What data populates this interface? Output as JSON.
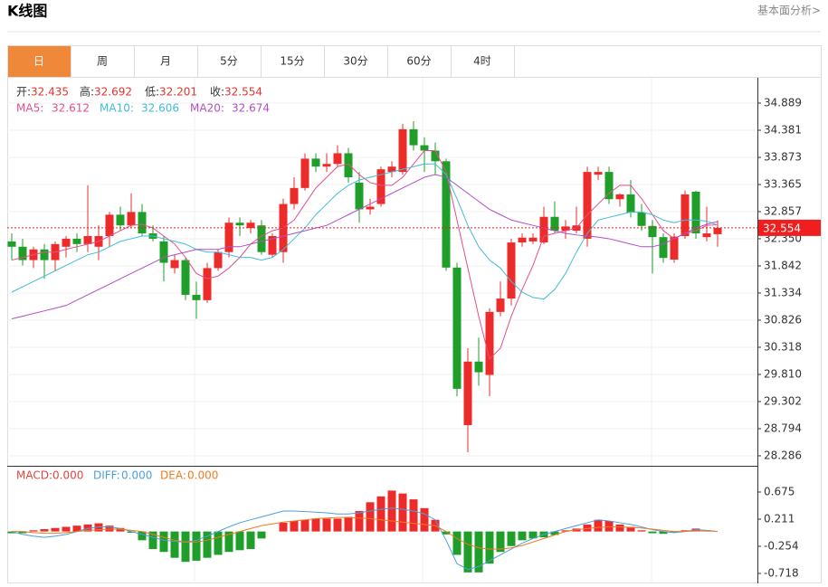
{
  "header": {
    "title": "K线图",
    "link": "基本面分析>"
  },
  "tabs": [
    "日",
    "周",
    "月",
    "5分",
    "15分",
    "30分",
    "60分",
    "4时"
  ],
  "active_tab": 0,
  "chart_data": [
    {
      "type": "candlestick",
      "ohlc_labels": [
        "开:",
        "高:",
        "低:",
        "收:"
      ],
      "ohlc": [
        [
          32.3,
          32.45,
          31.95,
          32.2
        ],
        [
          32.2,
          32.35,
          31.85,
          31.95
        ],
        [
          31.95,
          32.2,
          31.8,
          32.15
        ],
        [
          32.15,
          32.25,
          31.6,
          31.95
        ],
        [
          31.95,
          32.3,
          31.75,
          32.25
        ],
        [
          32.2,
          32.4,
          32.0,
          32.35
        ],
        [
          32.35,
          32.45,
          32.1,
          32.25
        ],
        [
          32.25,
          33.35,
          32.1,
          32.4
        ],
        [
          32.2,
          32.6,
          31.95,
          32.4
        ],
        [
          32.4,
          32.85,
          32.2,
          32.8
        ],
        [
          32.8,
          32.95,
          32.5,
          32.6
        ],
        [
          32.6,
          33.2,
          32.55,
          32.85
        ],
        [
          32.85,
          33.0,
          32.4,
          32.45
        ],
        [
          32.45,
          32.6,
          32.3,
          32.35
        ],
        [
          32.3,
          32.4,
          31.55,
          31.9
        ],
        [
          31.8,
          32.05,
          31.7,
          31.95
        ],
        [
          31.95,
          32.0,
          31.2,
          31.3
        ],
        [
          31.3,
          31.55,
          30.85,
          31.2
        ],
        [
          31.2,
          31.9,
          31.15,
          31.8
        ],
        [
          31.8,
          32.15,
          31.75,
          32.1
        ],
        [
          32.1,
          32.75,
          32.0,
          32.65
        ],
        [
          32.65,
          32.75,
          32.4,
          32.6
        ],
        [
          32.55,
          32.7,
          32.45,
          32.65
        ],
        [
          32.6,
          32.7,
          32.05,
          32.1
        ],
        [
          32.05,
          32.45,
          32.0,
          32.4
        ],
        [
          32.1,
          33.1,
          31.9,
          33.0
        ],
        [
          33.0,
          33.5,
          32.9,
          33.3
        ],
        [
          33.3,
          33.95,
          33.25,
          33.85
        ],
        [
          33.85,
          33.95,
          33.6,
          33.7
        ],
        [
          33.7,
          33.95,
          33.6,
          33.75
        ],
        [
          33.75,
          34.1,
          33.7,
          33.95
        ],
        [
          33.95,
          34.05,
          33.4,
          33.5
        ],
        [
          33.4,
          33.6,
          32.65,
          32.9
        ],
        [
          32.9,
          33.1,
          32.8,
          32.95
        ],
        [
          33.0,
          33.7,
          32.95,
          33.65
        ],
        [
          33.6,
          33.8,
          33.5,
          33.7
        ],
        [
          33.6,
          34.5,
          33.55,
          34.4
        ],
        [
          34.4,
          34.55,
          34.0,
          34.1
        ],
        [
          34.1,
          34.25,
          33.6,
          34.0
        ],
        [
          34.0,
          34.15,
          33.55,
          33.8
        ],
        [
          33.8,
          33.85,
          31.75,
          31.81
        ],
        [
          31.81,
          31.9,
          29.4,
          29.54
        ],
        [
          28.86,
          30.3,
          28.35,
          30.05
        ],
        [
          30.05,
          30.5,
          29.6,
          29.85
        ],
        [
          29.8,
          31.05,
          29.4,
          30.98
        ],
        [
          30.98,
          31.55,
          30.9,
          31.23
        ],
        [
          31.23,
          32.35,
          31.1,
          32.28
        ],
        [
          32.28,
          32.45,
          32.2,
          32.37
        ],
        [
          32.3,
          32.45,
          32.25,
          32.37
        ],
        [
          32.28,
          32.95,
          32.25,
          32.76
        ],
        [
          32.76,
          33.05,
          32.45,
          32.5
        ],
        [
          32.5,
          32.7,
          32.35,
          32.58
        ],
        [
          32.5,
          32.95,
          32.45,
          32.6
        ],
        [
          32.35,
          33.7,
          32.2,
          33.6
        ],
        [
          33.55,
          33.7,
          33.45,
          33.6
        ],
        [
          33.6,
          33.7,
          33.0,
          33.09
        ],
        [
          33.09,
          33.2,
          32.95,
          33.18
        ],
        [
          33.18,
          33.45,
          32.75,
          32.84
        ],
        [
          32.84,
          33.0,
          32.5,
          32.59
        ],
        [
          32.59,
          32.7,
          31.7,
          32.38
        ],
        [
          32.38,
          32.45,
          31.9,
          31.99
        ],
        [
          31.96,
          32.45,
          31.9,
          32.39
        ],
        [
          32.4,
          33.25,
          32.35,
          33.18
        ],
        [
          33.23,
          33.25,
          32.35,
          32.45
        ],
        [
          32.38,
          32.95,
          32.3,
          32.45
        ],
        [
          32.435,
          32.692,
          32.201,
          32.554
        ]
      ],
      "up_color": "#ee2b2b",
      "down_color": "#1f9e2a",
      "series": [
        {
          "name": "MA5:",
          "color": "#e2508c",
          "values": [
            31.95,
            32.0,
            32.05,
            32.1,
            32.1,
            32.15,
            32.2,
            32.25,
            32.3,
            32.4,
            32.5,
            32.6,
            32.62,
            32.55,
            32.4,
            32.25,
            32.0,
            31.7,
            31.6,
            31.65,
            31.8,
            32.0,
            32.25,
            32.4,
            32.5,
            32.55,
            32.7,
            33.0,
            33.3,
            33.5,
            33.7,
            33.75,
            33.55,
            33.4,
            33.35,
            33.35,
            33.5,
            33.75,
            34.0,
            34.0,
            33.6,
            32.7,
            31.8,
            30.9,
            30.1,
            30.3,
            30.9,
            31.4,
            31.85,
            32.4,
            32.45,
            32.5,
            32.55,
            32.8,
            33.0,
            33.2,
            33.35,
            33.35,
            33.1,
            32.8,
            32.5,
            32.35,
            32.45,
            32.5,
            32.6,
            32.612
          ]
        },
        {
          "name": "MA10:",
          "color": "#42bcd8",
          "values": [
            31.35,
            31.45,
            31.55,
            31.65,
            31.75,
            31.85,
            31.95,
            32.05,
            32.1,
            32.2,
            32.3,
            32.35,
            32.4,
            32.4,
            32.35,
            32.3,
            32.25,
            32.15,
            32.1,
            32.1,
            32.05,
            32.0,
            32.0,
            31.95,
            32.0,
            32.15,
            32.35,
            32.55,
            32.8,
            33.0,
            33.2,
            33.35,
            33.45,
            33.5,
            33.55,
            33.6,
            33.65,
            33.7,
            33.75,
            33.75,
            33.55,
            33.1,
            32.6,
            32.2,
            31.95,
            31.8,
            31.55,
            31.35,
            31.25,
            31.22,
            31.4,
            31.7,
            32.1,
            32.45,
            32.7,
            32.75,
            32.8,
            32.85,
            32.85,
            32.8,
            32.7,
            32.65,
            32.7,
            32.7,
            32.68,
            32.606
          ]
        },
        {
          "name": "MA20:",
          "color": "#b24fc4",
          "values": [
            30.85,
            30.9,
            30.95,
            31.0,
            31.05,
            31.1,
            31.2,
            31.3,
            31.4,
            31.5,
            31.6,
            31.7,
            31.8,
            31.9,
            32.0,
            32.05,
            32.1,
            32.15,
            32.15,
            32.15,
            32.2,
            32.2,
            32.25,
            32.3,
            32.35,
            32.4,
            32.45,
            32.5,
            32.55,
            32.6,
            32.7,
            32.8,
            32.9,
            33.0,
            33.1,
            33.2,
            33.3,
            33.4,
            33.5,
            33.55,
            33.5,
            33.35,
            33.2,
            33.05,
            32.9,
            32.8,
            32.7,
            32.65,
            32.6,
            32.55,
            32.5,
            32.45,
            32.42,
            32.4,
            32.38,
            32.35,
            32.3,
            32.25,
            32.2,
            32.2,
            32.25,
            32.35,
            32.45,
            32.55,
            32.62,
            32.674
          ]
        }
      ],
      "ylim": [
        28.099,
        35.38
      ],
      "yticks": [
        34.889,
        34.381,
        33.873,
        33.365,
        32.857,
        {
          "value": 32.35,
          "label": "32.350"
        },
        31.842,
        31.334,
        30.826,
        30.318,
        {
          "value": 29.81,
          "label": "29.810"
        },
        29.302,
        28.794,
        28.286
      ],
      "grid": true,
      "last_price": 32.554,
      "last_price_color": "#f01e1e"
    },
    {
      "type": "macd",
      "series": [
        {
          "name": "MACD:",
          "color": "#e0463e",
          "value_label": "0.000",
          "values": [
            -0.03,
            -0.03,
            0.02,
            0.04,
            0.06,
            0.08,
            0.1,
            0.12,
            0.14,
            0.1,
            0.06,
            -0.02,
            -0.15,
            -0.3,
            -0.35,
            -0.45,
            -0.52,
            -0.5,
            -0.45,
            -0.4,
            -0.35,
            -0.32,
            -0.3,
            -0.12,
            0,
            0.15,
            0.18,
            0.2,
            0.22,
            0.22,
            0.22,
            0.25,
            0.35,
            0.5,
            0.6,
            0.7,
            0.65,
            0.55,
            0.4,
            0.2,
            -0.05,
            -0.4,
            -0.7,
            -0.7,
            -0.55,
            -0.35,
            -0.25,
            -0.15,
            -0.12,
            -0.1,
            -0.06,
            0.02,
            0.05,
            0.12,
            0.2,
            0.18,
            0.12,
            0.08,
            0.02,
            -0.03,
            -0.04,
            -0.02,
            0.02,
            0.05,
            0.02,
            0
          ]
        },
        {
          "name": "DIFF:",
          "color": "#4a9ee0",
          "value_label": "0.000",
          "values": [
            0.0,
            -0.05,
            -0.08,
            -0.1,
            -0.08,
            -0.05,
            0.0,
            0.05,
            0.08,
            0.08,
            0.05,
            0.0,
            -0.05,
            -0.1,
            -0.15,
            -0.17,
            -0.18,
            -0.15,
            -0.08,
            0.0,
            0.08,
            0.15,
            0.2,
            0.25,
            0.3,
            0.35,
            0.35,
            0.34,
            0.33,
            0.32,
            0.3,
            0.3,
            0.32,
            0.35,
            0.38,
            0.4,
            0.38,
            0.35,
            0.3,
            0.2,
            -0.15,
            -0.55,
            -0.65,
            -0.6,
            -0.5,
            -0.4,
            -0.3,
            -0.2,
            -0.12,
            -0.05,
            0.0,
            0.05,
            0.1,
            0.15,
            0.2,
            0.18,
            0.15,
            0.12,
            0.08,
            0.03,
            0.0,
            -0.02,
            0.0,
            0.03,
            0.02,
            0.0
          ]
        },
        {
          "name": "DEA:",
          "color": "#ef7b22",
          "value_label": "0.000",
          "values": [
            0.0,
            0.0,
            -0.02,
            -0.03,
            -0.03,
            -0.02,
            0.0,
            0.02,
            0.03,
            0.04,
            0.04,
            0.02,
            0.0,
            -0.05,
            -0.1,
            -0.15,
            -0.18,
            -0.18,
            -0.15,
            -0.1,
            -0.05,
            0.0,
            0.05,
            0.1,
            0.13,
            0.16,
            0.18,
            0.2,
            0.22,
            0.23,
            0.24,
            0.24,
            0.23,
            0.22,
            0.2,
            0.18,
            0.16,
            0.14,
            0.12,
            0.1,
            0.0,
            -0.12,
            -0.22,
            -0.28,
            -0.3,
            -0.3,
            -0.28,
            -0.24,
            -0.18,
            -0.12,
            -0.06,
            0.0,
            0.03,
            0.05,
            0.07,
            0.08,
            0.08,
            0.07,
            0.06,
            0.04,
            0.02,
            0.0,
            0.0,
            0.01,
            0.01,
            0.0
          ]
        }
      ],
      "up_color": "#ee2b2b",
      "down_color": "#1f9e2a",
      "ylim": [
        -0.888,
        1.124
      ],
      "yticks": [
        0.675,
        0.211,
        -0.254,
        -0.718
      ]
    }
  ]
}
